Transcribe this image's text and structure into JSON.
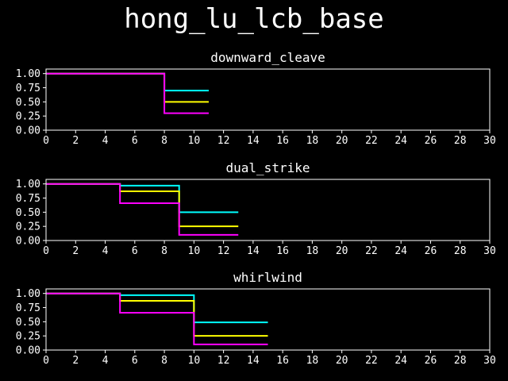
{
  "figure_title": "hong_lu_lcb_base",
  "colors": {
    "background": "#000000",
    "axes": "#ffffff",
    "series": [
      "#00ffff",
      "#ffff00",
      "#ff00ff"
    ]
  },
  "chart_data": [
    {
      "type": "line",
      "step": true,
      "title": "downward_cleave",
      "xlim": [
        0,
        30
      ],
      "ylim": [
        0,
        1.08
      ],
      "xticks": [
        0,
        2,
        4,
        6,
        8,
        10,
        12,
        14,
        16,
        18,
        20,
        22,
        24,
        26,
        28,
        30
      ],
      "yticks": [
        0.0,
        0.25,
        0.5,
        0.75,
        1.0
      ],
      "series": [
        {
          "color": "#00ffff",
          "x": [
            0,
            8,
            11
          ],
          "y": [
            1.0,
            0.7,
            0.7
          ]
        },
        {
          "color": "#ffff00",
          "x": [
            0,
            8,
            11
          ],
          "y": [
            1.0,
            0.5,
            0.5
          ]
        },
        {
          "color": "#ff00ff",
          "x": [
            0,
            8,
            11
          ],
          "y": [
            1.0,
            0.3,
            0.3
          ]
        }
      ]
    },
    {
      "type": "line",
      "step": true,
      "title": "dual_strike",
      "xlim": [
        0,
        30
      ],
      "ylim": [
        0,
        1.08
      ],
      "xticks": [
        0,
        2,
        4,
        6,
        8,
        10,
        12,
        14,
        16,
        18,
        20,
        22,
        24,
        26,
        28,
        30
      ],
      "yticks": [
        0.0,
        0.25,
        0.5,
        0.75,
        1.0
      ],
      "series": [
        {
          "color": "#00ffff",
          "x": [
            0,
            5,
            9,
            13
          ],
          "y": [
            1.0,
            0.97,
            0.5,
            0.5
          ]
        },
        {
          "color": "#ffff00",
          "x": [
            0,
            5,
            9,
            13
          ],
          "y": [
            1.0,
            0.87,
            0.25,
            0.25
          ]
        },
        {
          "color": "#ff00ff",
          "x": [
            0,
            5,
            9,
            13
          ],
          "y": [
            1.0,
            0.66,
            0.1,
            0.1
          ]
        }
      ]
    },
    {
      "type": "line",
      "step": true,
      "title": "whirlwind",
      "xlim": [
        0,
        30
      ],
      "ylim": [
        0,
        1.08
      ],
      "xticks": [
        0,
        2,
        4,
        6,
        8,
        10,
        12,
        14,
        16,
        18,
        20,
        22,
        24,
        26,
        28,
        30
      ],
      "yticks": [
        0.0,
        0.25,
        0.5,
        0.75,
        1.0
      ],
      "series": [
        {
          "color": "#00ffff",
          "x": [
            0,
            5,
            10,
            15
          ],
          "y": [
            1.0,
            0.97,
            0.49,
            0.49
          ]
        },
        {
          "color": "#ffff00",
          "x": [
            0,
            5,
            10,
            15
          ],
          "y": [
            1.0,
            0.87,
            0.25,
            0.25
          ]
        },
        {
          "color": "#ff00ff",
          "x": [
            0,
            5,
            10,
            15
          ],
          "y": [
            1.0,
            0.66,
            0.1,
            0.1
          ]
        }
      ]
    }
  ]
}
